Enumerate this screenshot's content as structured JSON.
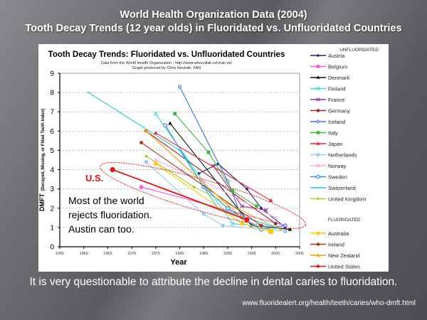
{
  "slide": {
    "title_line1": "World Health Organization Data (2004)",
    "title_line2": "Tooth Decay Trends (12 year olds) in Fluoridated vs. Unfluoridated Countries",
    "caption": "It is very questionable to attribute the decline in dental caries to fluoridation.",
    "source_url": "www.fluoridealert.org/health/teeth/caries/who-dmft.html"
  },
  "chart_data": {
    "type": "line",
    "title": "Tooth Decay Trends:  Fluoridated vs. Unfluoridated Countries",
    "subtitle1": "Data from the World Health Organization - http://www.whocollab.od.mah.se/",
    "subtitle2": "Graph produced by Chris Neurath, FAN",
    "xlabel": "Year",
    "ylabel_main": "DMFT",
    "ylabel_sub": "(Decayed, Missing, or Filled Teeth Index)",
    "xlim": [
      1955,
      2005
    ],
    "ylim": [
      0,
      9
    ],
    "xticks": [
      1955,
      1960,
      1965,
      1970,
      1975,
      1980,
      1985,
      1990,
      1995,
      2000,
      2005
    ],
    "yticks": [
      0,
      1,
      2,
      3,
      4,
      5,
      6,
      7,
      8,
      9
    ],
    "grid": "horizontal-dotted",
    "annotations": {
      "us_label": "U.S.",
      "message_line1": "Most of the world",
      "message_line2": "rejects fluoridation.",
      "message_line3": "Austin can too."
    },
    "legend": {
      "placement": "right",
      "group1_title": "UNFLUORIDATED",
      "group2_title": "FLUORIDATED"
    },
    "series": [
      {
        "name": "Austria",
        "group": "unfluoridated",
        "color": "#1a237e",
        "marker": "diamond",
        "x": [
          1984,
          1988,
          1994,
          1997,
          2002
        ],
        "y": [
          3.8,
          4.3,
          3.0,
          2.0,
          1.0
        ]
      },
      {
        "name": "Belgium",
        "group": "unfluoridated",
        "color": "#ff55dd",
        "marker": "square",
        "x": [
          1972,
          2002
        ],
        "y": [
          3.1,
          1.1
        ]
      },
      {
        "name": "Denmark",
        "group": "unfluoridated",
        "color": "#111111",
        "marker": "triangle",
        "x": [
          1978,
          1995,
          2003
        ],
        "y": [
          6.4,
          1.1,
          0.9
        ]
      },
      {
        "name": "Finland",
        "group": "unfluoridated",
        "color": "#33dddd",
        "marker": "x",
        "x": [
          1975,
          1991,
          2000
        ],
        "y": [
          6.9,
          1.2,
          1.0
        ]
      },
      {
        "name": "France",
        "group": "unfluoridated",
        "color": "#993399",
        "marker": "x",
        "x": [
          1987,
          1993,
          1998
        ],
        "y": [
          4.2,
          2.1,
          1.9
        ]
      },
      {
        "name": "Germany",
        "group": "unfluoridated",
        "color": "#992222",
        "marker": "circle",
        "x": [
          1973,
          2000
        ],
        "y": [
          6.0,
          1.2
        ]
      },
      {
        "name": "Iceland",
        "group": "unfluoridated",
        "color": "#3377ee",
        "marker": "diamond-open",
        "x": [
          1980,
          1990,
          1993,
          1997,
          2002
        ],
        "y": [
          8.3,
          3.4,
          1.5,
          0.9,
          1.1
        ]
      },
      {
        "name": "Italy",
        "group": "unfluoridated",
        "color": "#33bb33",
        "marker": "square",
        "x": [
          1979,
          1986,
          1991,
          1996
        ],
        "y": [
          6.9,
          4.9,
          2.9,
          2.1
        ]
      },
      {
        "name": "Japan",
        "group": "unfluoridated",
        "color": "#ee2222",
        "marker": "triangle",
        "x": [
          1975,
          1999
        ],
        "y": [
          5.9,
          2.4
        ]
      },
      {
        "name": "Netherlands",
        "group": "unfluoridated",
        "color": "#99ccee",
        "marker": "square",
        "x": [
          1973,
          1985,
          1989,
          2002
        ],
        "y": [
          4.4,
          1.7,
          1.1,
          0.8
        ]
      },
      {
        "name": "Norway",
        "group": "unfluoridated",
        "color": "#ffaadd",
        "marker": "x",
        "x": [
          1975,
          1985,
          2000
        ],
        "y": [
          4.5,
          3.4,
          1.5
        ]
      },
      {
        "name": "Sweden",
        "group": "unfluoridated",
        "color": "#3388ee",
        "marker": "circle-open",
        "x": [
          1977,
          1985,
          1990,
          1997
        ],
        "y": [
          6.3,
          3.1,
          2.0,
          0.9
        ]
      },
      {
        "name": "Switzerland",
        "group": "unfluoridated",
        "color": "#22cccc",
        "marker": "dash",
        "x": [
          1961,
          1980,
          1988,
          2000
        ],
        "y": [
          8.0,
          5.0,
          2.0,
          1.0
        ]
      },
      {
        "name": "United Kingdom",
        "group": "unfluoridated",
        "color": "#aacc22",
        "marker": "diamond",
        "x": [
          1973,
          1983,
          2001
        ],
        "y": [
          4.7,
          3.1,
          0.9
        ]
      },
      {
        "name": "Australia",
        "group": "fluoridated",
        "color": "#ffcc00",
        "marker": "square",
        "x": [
          1975,
          1993,
          1999
        ],
        "y": [
          4.3,
          1.2,
          0.8
        ]
      },
      {
        "name": "Ireland",
        "group": "fluoridated",
        "color": "#aa3311",
        "marker": "circle",
        "x": [
          1972,
          1997
        ],
        "y": [
          5.4,
          1.1
        ]
      },
      {
        "name": "New Zealand",
        "group": "fluoridated",
        "color": "#ff9900",
        "marker": "triangle",
        "x": [
          1973,
          1993
        ],
        "y": [
          6.0,
          1.5
        ]
      },
      {
        "name": "United States",
        "group": "fluoridated",
        "color": "#ee1111",
        "marker": "circle",
        "x": [
          1966,
          1994
        ],
        "y": [
          4.0,
          1.4
        ]
      }
    ]
  }
}
